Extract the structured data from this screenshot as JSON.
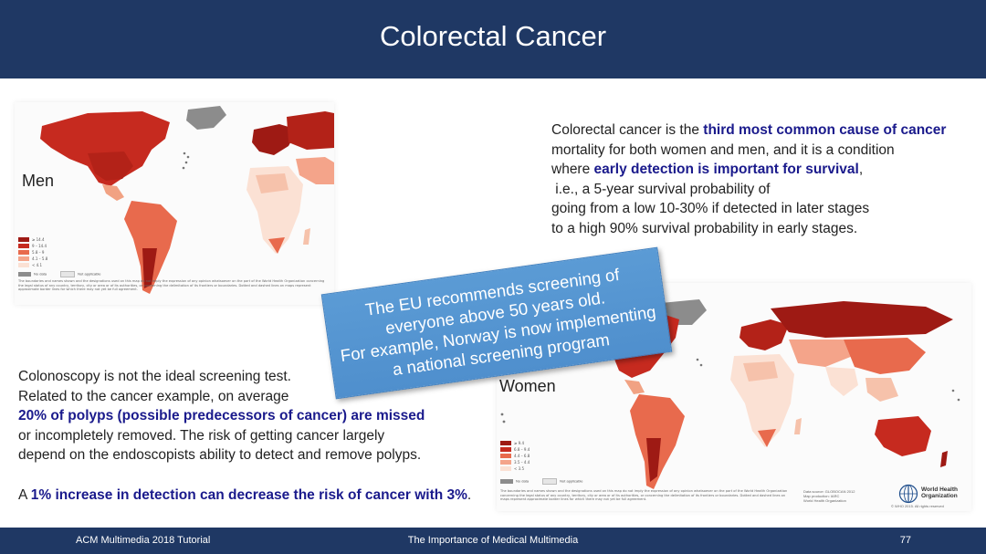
{
  "header": {
    "title": "Colorectal Cancer"
  },
  "footer": {
    "left": "ACM Multimedia 2018 Tutorial",
    "center": "The Importance of Medical Multimedia",
    "page": "77"
  },
  "map_men": {
    "label": "Men",
    "legend": [
      "≥ 14.4",
      "9 – 14.4",
      "5.8 – 9",
      "4.1 – 5.8",
      "< 4.1"
    ],
    "no_data": "No data",
    "not_applicable": "Not applicable",
    "disclaimer": "The boundaries and names shown and the designations used on this map do not imply the expression of any opinion whatsoever on the part of the World Health Organization concerning the legal status of any country, territory, city or area or of its authorities, or concerning the delimitation of its frontiers or boundaries. Dotted and dashed lines on maps represent approximate border lines for which there may not yet be full agreement."
  },
  "map_women": {
    "label": "Women",
    "legend": [
      "≥ 9.4",
      "6.8 – 9.4",
      "4.4 – 6.8",
      "3.5 – 4.4",
      "< 3.5"
    ],
    "no_data": "No data",
    "not_applicable": "Not applicable",
    "disclaimer": "The boundaries and names shown and the designations used on this map do not imply the expression of any opinion whatsoever on the part of the World Health Organization concerning the legal status of any country, territory, city or area or of its authorities, or concerning the delimitation of its frontiers or boundaries. Dotted and dashed lines on maps represent approximate border lines for which there may not yet be full agreement.",
    "data_source": "Data source: GLOBOCAN 2012",
    "map_production": "Map production: IARC",
    "organization": "World Health Organization",
    "who_name_1": "World Health",
    "who_name_2": "Organization",
    "copyright": "© WHO 2015. All rights reserved"
  },
  "description": {
    "p1_pre": "Colorectal cancer is the ",
    "p1_hl": "third most common cause of cancer",
    "p2": "mortality for both women and men, and it is a condition",
    "p3_pre": "where ",
    "p3_hl": "early detection is important for survival",
    "p3_post": ",",
    "p4": " i.e., a 5-year survival probability of",
    "p5": "going from a low 10-30% if detected in later stages",
    "p6": "to a high 90% survival probability in early stages."
  },
  "callout": {
    "line1": "The EU recommends screening of",
    "line2": "everyone above 50 years old.",
    "line3": "For example, Norway is now implementing",
    "line4": "a national screening program"
  },
  "colonoscopy": {
    "l1": "Colonoscopy is not the ideal screening test.",
    "l2": "Related to the cancer example, on average",
    "l3_hl": "20% of polyps (possible predecessors of cancer) are missed",
    "l4": "or incompletely removed. The risk of getting cancer largely",
    "l5": "depend on the endoscopists ability to detect and remove polyps.",
    "l6_pre": "A ",
    "l6_hl": "1% increase in detection can decrease the risk of cancer with 3%",
    "l6_post": "."
  },
  "colors": {
    "header_bg": "#1f3864",
    "accent_text": "#1a1a8c",
    "callout_bg": "#5b9bd5",
    "map_dark": "#9e1a14",
    "map_mid": "#d9372a",
    "map_light": "#f4a48a",
    "map_pale": "#fbe1d4",
    "no_data": "#8c8c8c"
  }
}
